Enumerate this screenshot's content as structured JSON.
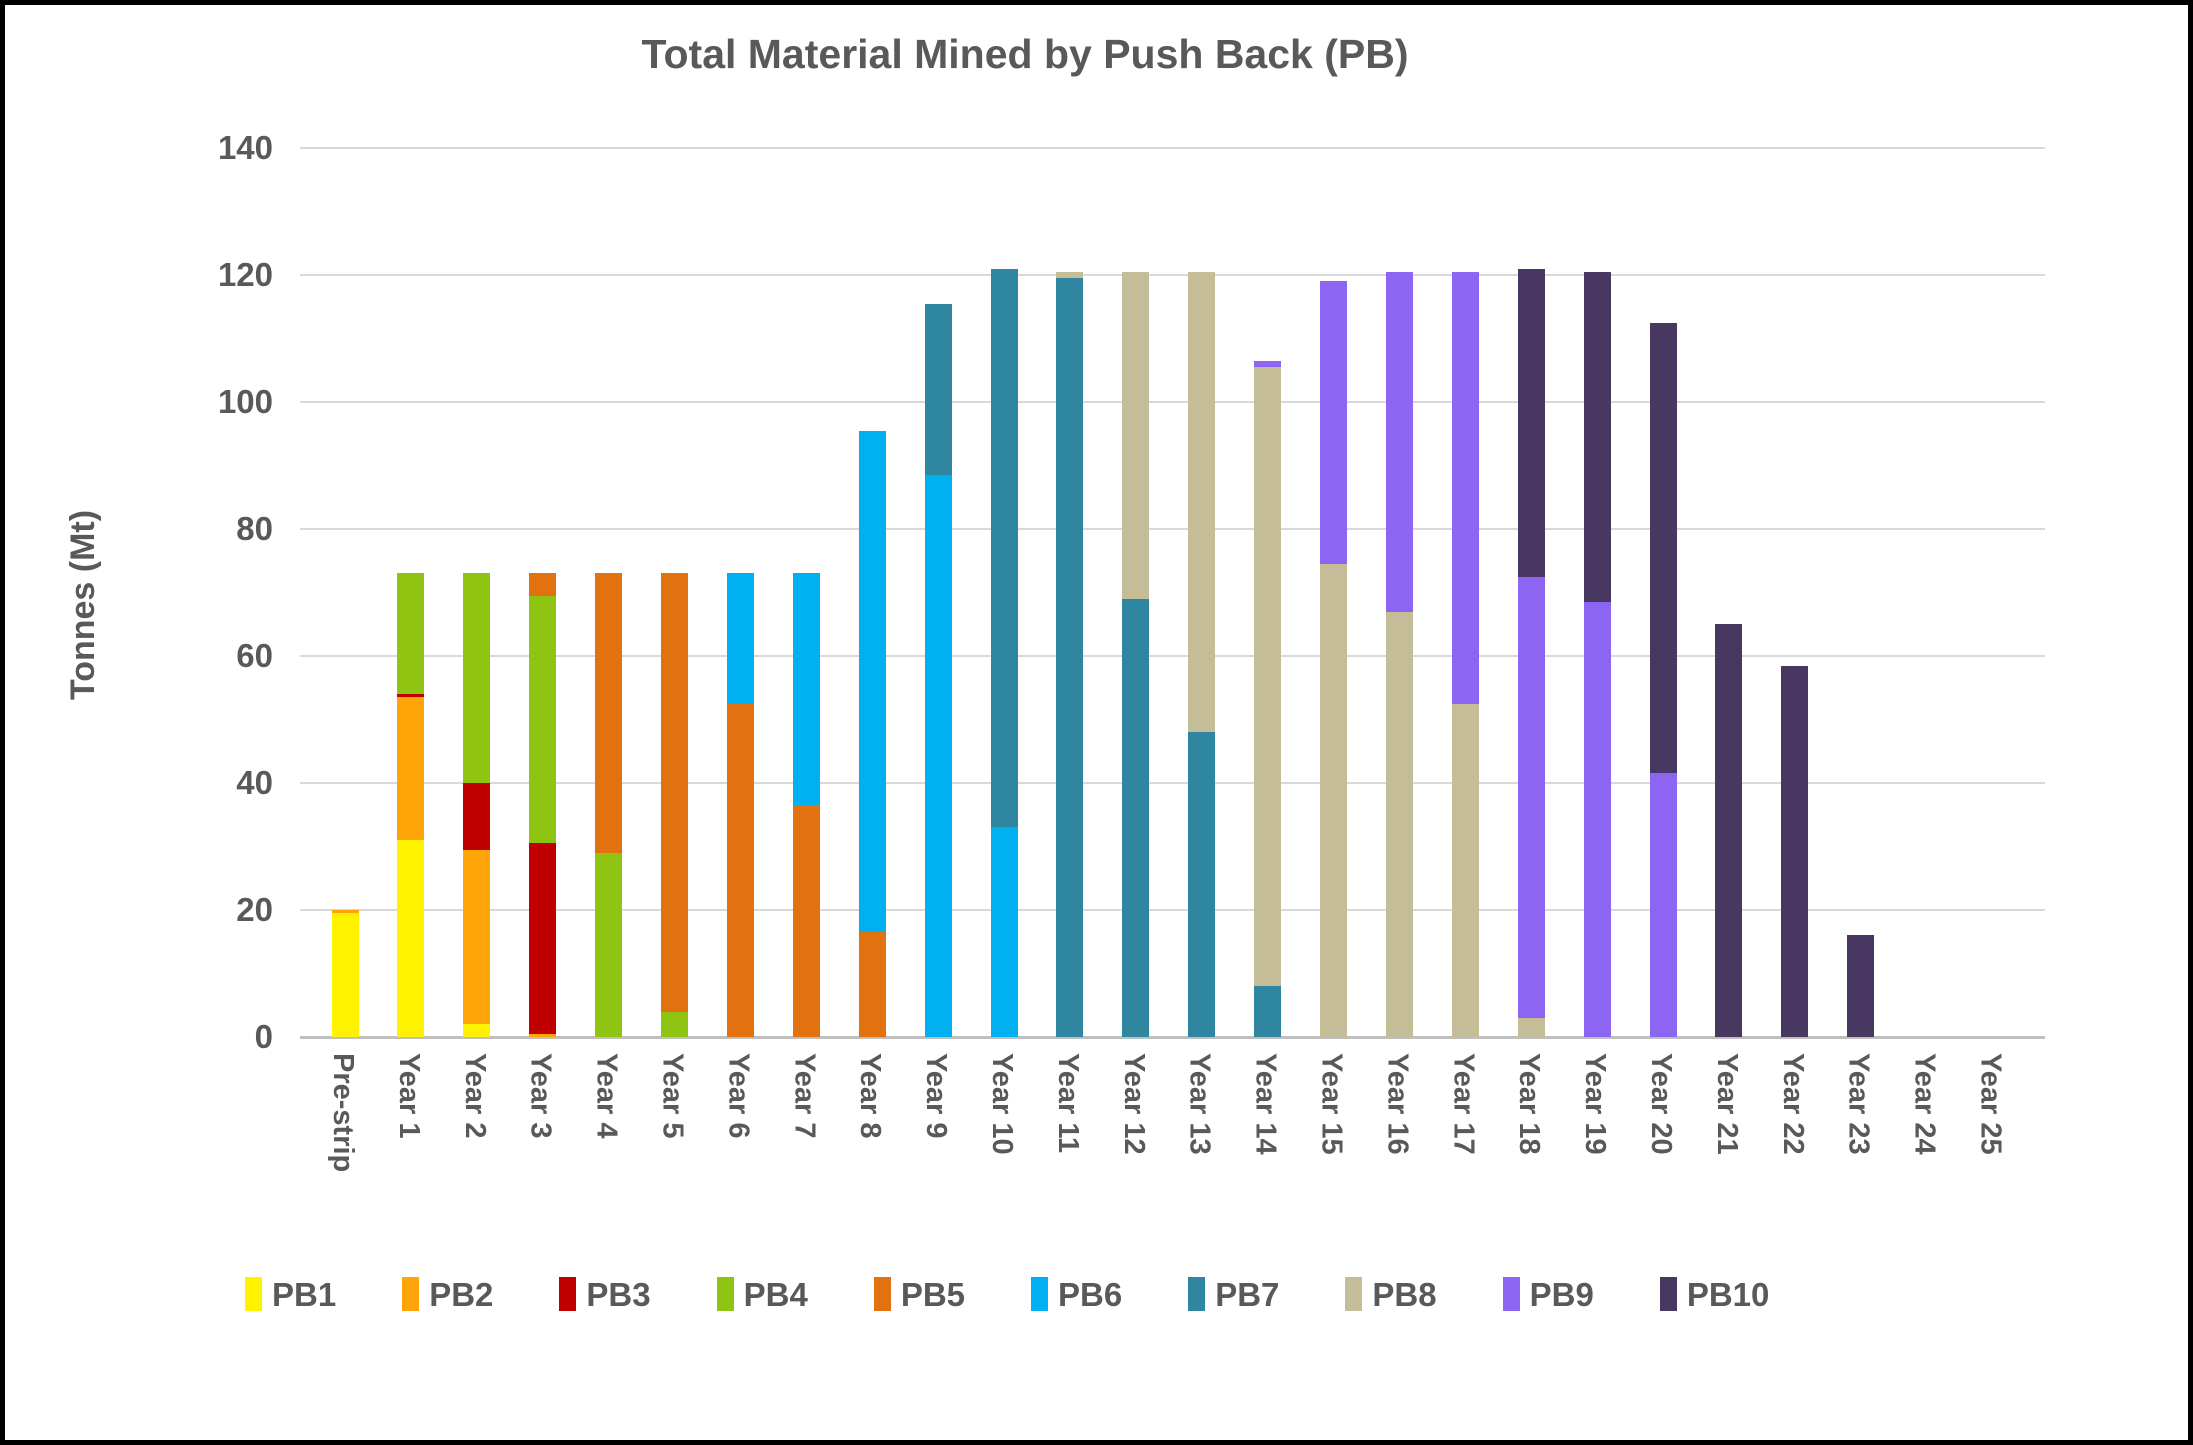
{
  "title": "Total Material Mined by Push Back (PB)",
  "y_axis": {
    "label": "Tonnes (Mt)",
    "ticks": [
      0,
      20,
      40,
      60,
      80,
      100,
      120,
      140
    ]
  },
  "colors": {
    "text": "#595959",
    "gridline": "#d9d9d9",
    "axis_line": "#bfbfbf"
  },
  "chart_data": {
    "type": "bar",
    "stacked": true,
    "title": "Total Material Mined by Push Back (PB)",
    "xlabel": "",
    "ylabel": "Tonnes (Mt)",
    "ylim": [
      0,
      140
    ],
    "grid": "horizontal",
    "legend_position": "bottom",
    "categories": [
      "Pre-strip",
      "Year 1",
      "Year 2",
      "Year 3",
      "Year 4",
      "Year 5",
      "Year 6",
      "Year 7",
      "Year 8",
      "Year 9",
      "Year 10",
      "Year 11",
      "Year 12",
      "Year 13",
      "Year 14",
      "Year 15",
      "Year 16",
      "Year 17",
      "Year 18",
      "Year 19",
      "Year 20",
      "Year 21",
      "Year 22",
      "Year 23",
      "Year 24",
      "Year 25"
    ],
    "units": "Mt",
    "series": [
      {
        "name": "PB1",
        "color": "#FFF200",
        "values": [
          19.5,
          31,
          2,
          0,
          0,
          0,
          0,
          0,
          0,
          0,
          0,
          0,
          0,
          0,
          0,
          0,
          0,
          0,
          0,
          0,
          0,
          0,
          0,
          0,
          0,
          0
        ]
      },
      {
        "name": "PB2",
        "color": "#FFA409",
        "values": [
          0.5,
          22.5,
          27.5,
          0.5,
          0,
          0,
          0,
          0,
          0,
          0,
          0,
          0,
          0,
          0,
          0,
          0,
          0,
          0,
          0,
          0,
          0,
          0,
          0,
          0,
          0,
          0
        ]
      },
      {
        "name": "PB3",
        "color": "#C00000",
        "values": [
          0,
          0.5,
          10.5,
          30,
          0,
          0,
          0,
          0,
          0,
          0,
          0,
          0,
          0,
          0,
          0,
          0,
          0,
          0,
          0,
          0,
          0,
          0,
          0,
          0,
          0,
          0
        ]
      },
      {
        "name": "PB4",
        "color": "#90C412",
        "values": [
          0,
          19,
          33,
          39,
          29,
          4,
          0,
          0,
          0,
          0,
          0,
          0,
          0,
          0,
          0,
          0,
          0,
          0,
          0,
          0,
          0,
          0,
          0,
          0,
          0,
          0
        ]
      },
      {
        "name": "PB5",
        "color": "#E2720F",
        "values": [
          0,
          0,
          0,
          3.5,
          44,
          69,
          52.5,
          36.5,
          16.5,
          0,
          0,
          0,
          0,
          0,
          0,
          0,
          0,
          0,
          0,
          0,
          0,
          0,
          0,
          0,
          0,
          0
        ]
      },
      {
        "name": "PB6",
        "color": "#00B0F0",
        "values": [
          0,
          0,
          0,
          0,
          0,
          0,
          20.5,
          36.5,
          79,
          88.5,
          33,
          0,
          0,
          0,
          0,
          0,
          0,
          0,
          0,
          0,
          0,
          0,
          0,
          0,
          0,
          0
        ]
      },
      {
        "name": "PB7",
        "color": "#2E86A0",
        "values": [
          0,
          0,
          0,
          0,
          0,
          0,
          0,
          0,
          0,
          27,
          88,
          119.5,
          69,
          48,
          8,
          0,
          0,
          0,
          0,
          0,
          0,
          0,
          0,
          0,
          0,
          0
        ]
      },
      {
        "name": "PB8",
        "color": "#C4BD97",
        "values": [
          0,
          0,
          0,
          0,
          0,
          0,
          0,
          0,
          0,
          0,
          0,
          1,
          51.5,
          72.5,
          97.5,
          74.5,
          67,
          52.5,
          3,
          0,
          0,
          0,
          0,
          0,
          0,
          0
        ]
      },
      {
        "name": "PB9",
        "color": "#8C66F2",
        "values": [
          0,
          0,
          0,
          0,
          0,
          0,
          0,
          0,
          0,
          0,
          0,
          0,
          0,
          0,
          1,
          44.5,
          53.5,
          68,
          69.5,
          68.5,
          41.5,
          0,
          0,
          0,
          0,
          0
        ]
      },
      {
        "name": "PB10",
        "color": "#473761",
        "values": [
          0,
          0,
          0,
          0,
          0,
          0,
          0,
          0,
          0,
          0,
          0,
          0,
          0,
          0,
          0,
          0,
          0,
          0,
          48.5,
          52,
          71,
          65,
          58.5,
          16,
          0,
          0
        ]
      }
    ]
  }
}
